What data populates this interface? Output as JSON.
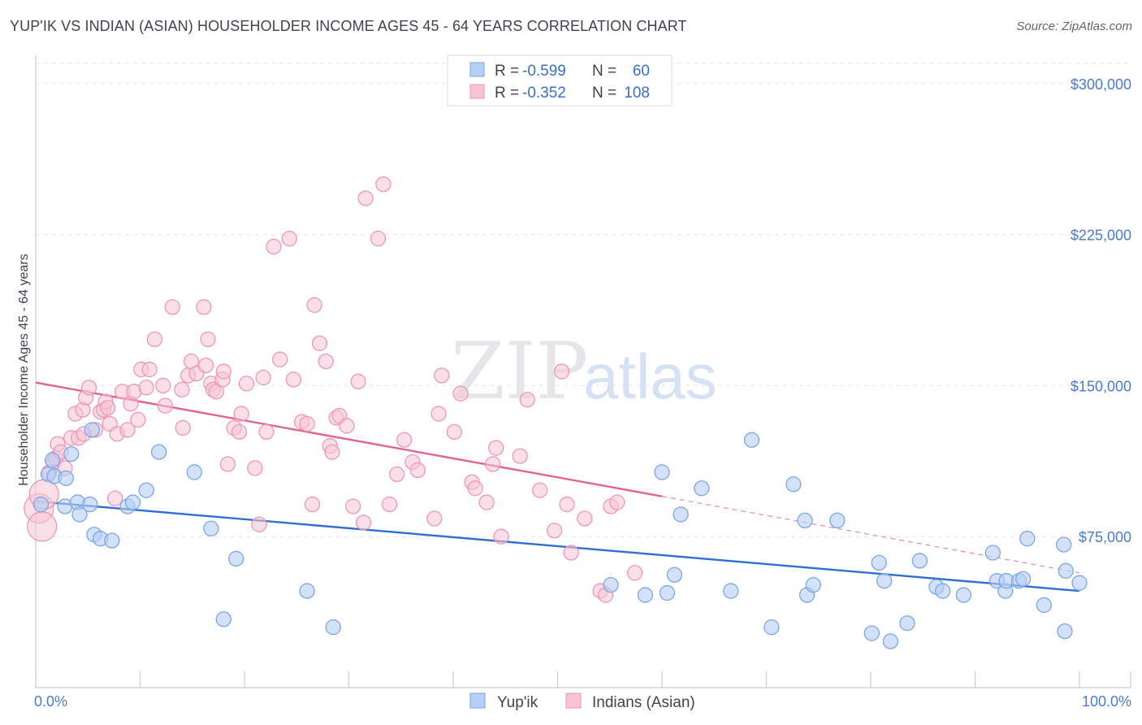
{
  "title": "YUP'IK VS INDIAN (ASIAN) HOUSEHOLDER INCOME AGES 45 - 64 YEARS CORRELATION CHART",
  "source_prefix": "Source: ",
  "source_name": "ZipAtlas.com",
  "watermark": {
    "zip": "ZIP",
    "atlas": "atlas"
  },
  "colors": {
    "yupik_fill": "#b6cff5",
    "yupik_stroke": "#7aa6e6",
    "yupik_line": "#2f6fd0",
    "indian_fill": "#f8c4d4",
    "indian_stroke": "#ee97b4",
    "indian_line": "#e2638f",
    "tick_label": "#4a7bd0",
    "grid": "#e3e6ea"
  },
  "legend": {
    "r_label": "R = ",
    "n_label": "N = ",
    "rows": [
      {
        "r": "-0.599",
        "n": "60"
      },
      {
        "r": "-0.352",
        "n": "108"
      }
    ]
  },
  "chart_data": {
    "type": "scatter",
    "title": "YUP'IK VS INDIAN (ASIAN) HOUSEHOLDER INCOME AGES 45 - 64 YEARS CORRELATION CHART",
    "xlabel": "",
    "ylabel": "Householder Income Ages 45 - 64 years",
    "xlim": [
      0,
      100
    ],
    "ylim": [
      0,
      310000
    ],
    "x_tick_labels": [
      "0.0%",
      "100.0%"
    ],
    "y_ticks": [
      75000,
      150000,
      225000,
      300000
    ],
    "y_tick_labels": [
      "$75,000",
      "$150,000",
      "$225,000",
      "$300,000"
    ],
    "grid": true,
    "legend_position": "top-center",
    "series": [
      {
        "name": "Yup'ik",
        "r": -0.599,
        "n": 60,
        "trend": {
          "x": [
            0,
            100
          ],
          "y": [
            92500,
            48000
          ]
        },
        "points": [
          [
            0.5,
            91000
          ],
          [
            1.2,
            106000
          ],
          [
            1.6,
            113000
          ],
          [
            1.8,
            105000
          ],
          [
            2.8,
            90000
          ],
          [
            2.9,
            104000
          ],
          [
            3.4,
            116000
          ],
          [
            4.0,
            92000
          ],
          [
            4.2,
            86000
          ],
          [
            5.2,
            91000
          ],
          [
            5.4,
            128000
          ],
          [
            5.6,
            76000
          ],
          [
            6.2,
            74000
          ],
          [
            7.3,
            73000
          ],
          [
            8.8,
            90000
          ],
          [
            9.3,
            92000
          ],
          [
            10.6,
            98000
          ],
          [
            11.8,
            117000
          ],
          [
            15.2,
            107000
          ],
          [
            16.8,
            79000
          ],
          [
            18.0,
            34000
          ],
          [
            19.2,
            64000
          ],
          [
            26.0,
            48000
          ],
          [
            28.5,
            30000
          ],
          [
            55.1,
            51000
          ],
          [
            58.4,
            46000
          ],
          [
            60.0,
            107000
          ],
          [
            60.5,
            47000
          ],
          [
            61.2,
            56000
          ],
          [
            61.8,
            86000
          ],
          [
            63.8,
            99000
          ],
          [
            66.6,
            48000
          ],
          [
            68.6,
            123000
          ],
          [
            70.5,
            30000
          ],
          [
            72.6,
            101000
          ],
          [
            73.7,
            83000
          ],
          [
            73.9,
            46000
          ],
          [
            74.5,
            51000
          ],
          [
            76.8,
            83000
          ],
          [
            80.1,
            27000
          ],
          [
            80.8,
            62000
          ],
          [
            81.3,
            53000
          ],
          [
            81.9,
            23000
          ],
          [
            83.5,
            32000
          ],
          [
            84.7,
            63000
          ],
          [
            86.3,
            50000
          ],
          [
            86.9,
            48000
          ],
          [
            88.9,
            46000
          ],
          [
            91.7,
            67000
          ],
          [
            92.1,
            53000
          ],
          [
            92.9,
            48000
          ],
          [
            93.0,
            53000
          ],
          [
            94.2,
            53000
          ],
          [
            94.6,
            54000
          ],
          [
            95.0,
            74000
          ],
          [
            96.6,
            41000
          ],
          [
            98.5,
            71000
          ],
          [
            98.6,
            28000
          ],
          [
            98.7,
            58000
          ],
          [
            100.0,
            52000
          ]
        ]
      },
      {
        "name": "Indians (Asian)",
        "r": -0.352,
        "n": 108,
        "trend": {
          "x": [
            0,
            60
          ],
          "y": [
            151500,
            95000
          ]
        },
        "trend_dashed": {
          "x": [
            60,
            100
          ],
          "y": [
            95000,
            57000
          ]
        },
        "points": [
          [
            0.3,
            89000
          ],
          [
            0.6,
            80000
          ],
          [
            0.8,
            96000
          ],
          [
            1.3,
            107000
          ],
          [
            1.7,
            112000
          ],
          [
            1.9,
            114000
          ],
          [
            2.1,
            121000
          ],
          [
            2.4,
            117000
          ],
          [
            2.8,
            109000
          ],
          [
            3.4,
            124000
          ],
          [
            3.8,
            136000
          ],
          [
            4.1,
            124000
          ],
          [
            4.5,
            138000
          ],
          [
            4.6,
            126000
          ],
          [
            4.8,
            144000
          ],
          [
            5.1,
            149000
          ],
          [
            5.7,
            128000
          ],
          [
            6.2,
            137000
          ],
          [
            6.5,
            138000
          ],
          [
            6.7,
            142000
          ],
          [
            6.9,
            139000
          ],
          [
            7.1,
            131000
          ],
          [
            7.6,
            94000
          ],
          [
            7.8,
            126000
          ],
          [
            8.3,
            147000
          ],
          [
            8.8,
            128000
          ],
          [
            9.1,
            141000
          ],
          [
            9.4,
            147000
          ],
          [
            9.8,
            133000
          ],
          [
            10.1,
            158000
          ],
          [
            10.6,
            149000
          ],
          [
            10.9,
            158000
          ],
          [
            11.4,
            173000
          ],
          [
            12.2,
            150000
          ],
          [
            12.4,
            140000
          ],
          [
            13.1,
            189000
          ],
          [
            14.0,
            148000
          ],
          [
            14.1,
            129000
          ],
          [
            14.6,
            155000
          ],
          [
            14.9,
            162000
          ],
          [
            15.4,
            156000
          ],
          [
            16.1,
            189000
          ],
          [
            16.3,
            160000
          ],
          [
            16.5,
            173000
          ],
          [
            16.8,
            151000
          ],
          [
            17.0,
            148000
          ],
          [
            17.3,
            147000
          ],
          [
            17.9,
            153000
          ],
          [
            18.0,
            157000
          ],
          [
            18.4,
            111000
          ],
          [
            19.0,
            129000
          ],
          [
            19.5,
            127000
          ],
          [
            19.7,
            136000
          ],
          [
            20.2,
            151000
          ],
          [
            21.0,
            109000
          ],
          [
            21.4,
            81000
          ],
          [
            21.8,
            154000
          ],
          [
            22.1,
            127000
          ],
          [
            22.8,
            219000
          ],
          [
            23.4,
            163000
          ],
          [
            24.3,
            223000
          ],
          [
            24.7,
            153000
          ],
          [
            25.5,
            132000
          ],
          [
            26.0,
            131000
          ],
          [
            26.5,
            91000
          ],
          [
            26.7,
            190000
          ],
          [
            27.2,
            171000
          ],
          [
            27.8,
            162000
          ],
          [
            28.2,
            120000
          ],
          [
            28.4,
            117000
          ],
          [
            28.8,
            134000
          ],
          [
            29.1,
            135000
          ],
          [
            29.8,
            130000
          ],
          [
            30.4,
            90000
          ],
          [
            30.9,
            152000
          ],
          [
            31.4,
            82000
          ],
          [
            31.6,
            243000
          ],
          [
            32.8,
            223000
          ],
          [
            33.3,
            250000
          ],
          [
            33.9,
            91000
          ],
          [
            34.6,
            106000
          ],
          [
            35.3,
            123000
          ],
          [
            36.1,
            112000
          ],
          [
            36.6,
            108000
          ],
          [
            38.2,
            84000
          ],
          [
            38.6,
            136000
          ],
          [
            38.9,
            155000
          ],
          [
            40.1,
            127000
          ],
          [
            40.7,
            146000
          ],
          [
            41.8,
            102000
          ],
          [
            42.1,
            99000
          ],
          [
            43.2,
            92000
          ],
          [
            43.8,
            111000
          ],
          [
            44.6,
            75000
          ],
          [
            44.1,
            119000
          ],
          [
            46.4,
            115000
          ],
          [
            47.1,
            143000
          ],
          [
            48.3,
            98000
          ],
          [
            49.7,
            78000
          ],
          [
            50.4,
            157000
          ],
          [
            50.9,
            91000
          ],
          [
            51.3,
            67000
          ],
          [
            52.6,
            84000
          ],
          [
            54.1,
            48000
          ],
          [
            54.6,
            46000
          ],
          [
            55.1,
            90000
          ],
          [
            55.7,
            92000
          ],
          [
            57.4,
            57000
          ]
        ]
      }
    ]
  },
  "axis": {
    "ylabel": "Householder Income Ages 45 - 64 years",
    "x_left": "0.0%",
    "x_right": "100.0%",
    "y_ticks": [
      "$75,000",
      "$150,000",
      "$225,000",
      "$300,000"
    ]
  },
  "bottom_legend": [
    "Yup'ik",
    "Indians (Asian)"
  ]
}
